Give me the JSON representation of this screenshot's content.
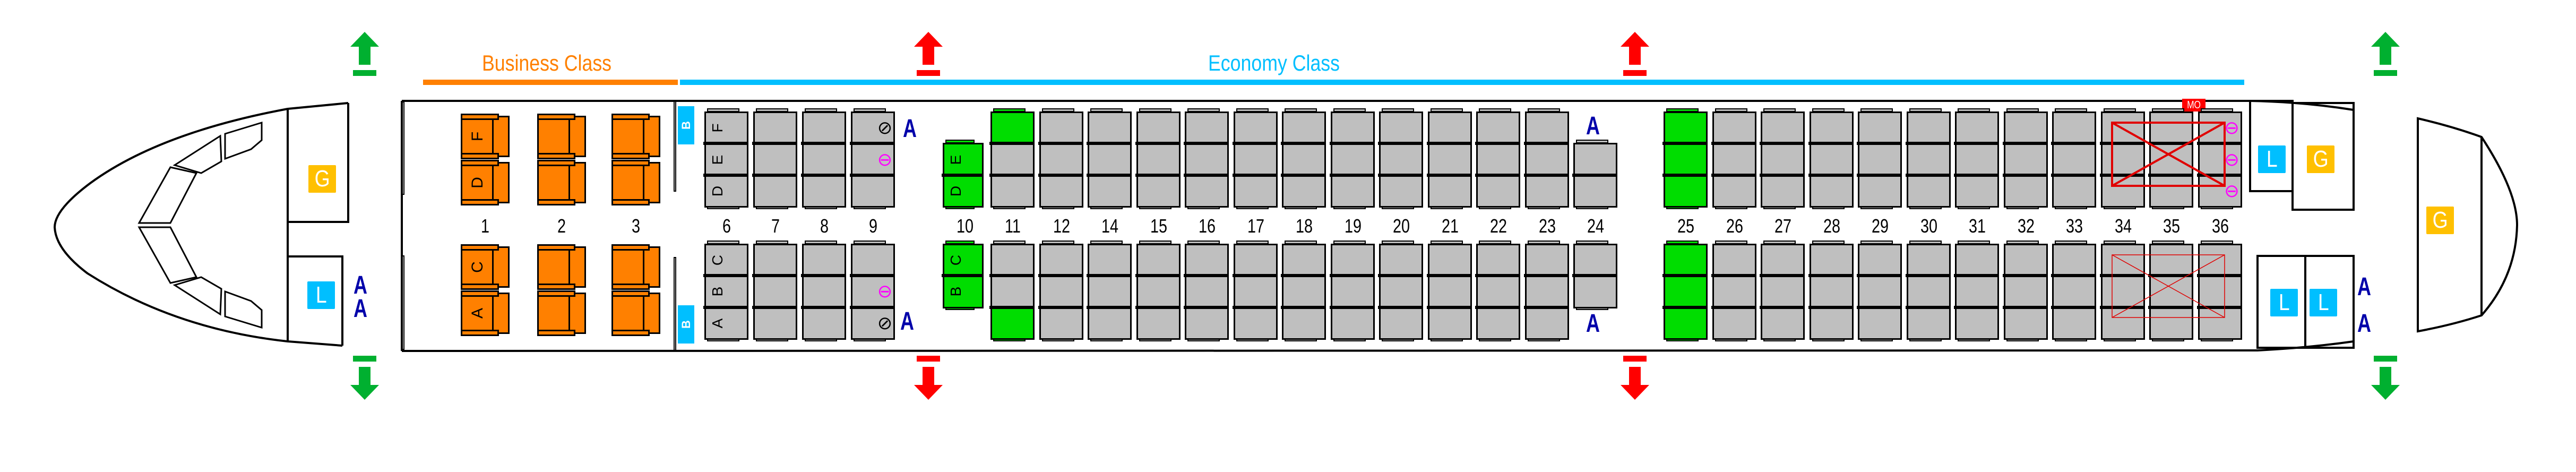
{
  "labels": {
    "business": "Business Class",
    "economy": "Economy Class"
  },
  "colors": {
    "business": "#FF8000",
    "economy_line": "#00BFFF",
    "seat_available": "#BFBFBF",
    "seat_green": "#00DD00",
    "galley": "#FFC000",
    "lavatory": "#00BFFF",
    "bassinet": "#00BFFF",
    "attendant": "#0000AA",
    "exit_main": "#00B030",
    "exit_overwing": "#FF0000",
    "blocked": "#E00000",
    "icon_magenta": "#FF00FF",
    "mo_badge": "#FF0000"
  },
  "facilities": {
    "galley": "G",
    "lavatory": "L",
    "bassinet": "B",
    "attendant": "A",
    "mo": "MO"
  },
  "business": {
    "rows": [
      "1",
      "2",
      "3"
    ],
    "upper_letters": [
      "F",
      "D"
    ],
    "lower_letters": [
      "C",
      "A"
    ]
  },
  "economy": {
    "upper_letters_3": [
      "F",
      "E",
      "D"
    ],
    "upper_letters_2": [
      "E",
      "D"
    ],
    "lower_letters_3": [
      "C",
      "B",
      "A"
    ],
    "lower_letters_2": [
      "C",
      "B"
    ],
    "blocked_rows": [
      "34",
      "35",
      "36"
    ],
    "rows": [
      {
        "n": "6",
        "upper": [
          "gray",
          "gray",
          "gray"
        ],
        "lower": [
          "gray",
          "gray",
          "gray"
        ],
        "show_letters": true
      },
      {
        "n": "7",
        "upper": [
          "gray",
          "gray",
          "gray"
        ],
        "lower": [
          "gray",
          "gray",
          "gray"
        ]
      },
      {
        "n": "8",
        "upper": [
          "gray",
          "gray",
          "gray"
        ],
        "lower": [
          "gray",
          "gray",
          "gray"
        ]
      },
      {
        "n": "9",
        "upper": [
          "gray",
          "gray",
          "gray"
        ],
        "lower": [
          "gray",
          "gray",
          "gray"
        ],
        "icons_upper": [
          "circle-slash",
          "circle-bar",
          ""
        ],
        "icons_lower": [
          "",
          "circle-bar",
          "circle-slash"
        ]
      },
      {
        "n": "10",
        "upper": [
          "green",
          "green"
        ],
        "lower": [
          "green",
          "green"
        ],
        "show_letters": true
      },
      {
        "n": "11",
        "upper": [
          "green",
          "gray",
          "gray"
        ],
        "lower": [
          "gray",
          "gray",
          "green"
        ]
      },
      {
        "n": "12",
        "upper": [
          "gray",
          "gray",
          "gray"
        ],
        "lower": [
          "gray",
          "gray",
          "gray"
        ]
      },
      {
        "n": "14",
        "upper": [
          "gray",
          "gray",
          "gray"
        ],
        "lower": [
          "gray",
          "gray",
          "gray"
        ]
      },
      {
        "n": "15",
        "upper": [
          "gray",
          "gray",
          "gray"
        ],
        "lower": [
          "gray",
          "gray",
          "gray"
        ]
      },
      {
        "n": "16",
        "upper": [
          "gray",
          "gray",
          "gray"
        ],
        "lower": [
          "gray",
          "gray",
          "gray"
        ]
      },
      {
        "n": "17",
        "upper": [
          "gray",
          "gray",
          "gray"
        ],
        "lower": [
          "gray",
          "gray",
          "gray"
        ]
      },
      {
        "n": "18",
        "upper": [
          "gray",
          "gray",
          "gray"
        ],
        "lower": [
          "gray",
          "gray",
          "gray"
        ]
      },
      {
        "n": "19",
        "upper": [
          "gray",
          "gray",
          "gray"
        ],
        "lower": [
          "gray",
          "gray",
          "gray"
        ]
      },
      {
        "n": "20",
        "upper": [
          "gray",
          "gray",
          "gray"
        ],
        "lower": [
          "gray",
          "gray",
          "gray"
        ]
      },
      {
        "n": "21",
        "upper": [
          "gray",
          "gray",
          "gray"
        ],
        "lower": [
          "gray",
          "gray",
          "gray"
        ]
      },
      {
        "n": "22",
        "upper": [
          "gray",
          "gray",
          "gray"
        ],
        "lower": [
          "gray",
          "gray",
          "gray"
        ]
      },
      {
        "n": "23",
        "upper": [
          "gray",
          "gray",
          "gray"
        ],
        "lower": [
          "gray",
          "gray",
          "gray"
        ]
      },
      {
        "n": "24",
        "upper": [
          "gray",
          "gray"
        ],
        "lower": [
          "gray",
          "gray"
        ]
      },
      {
        "n": "25",
        "upper": [
          "green",
          "green",
          "green"
        ],
        "lower": [
          "green",
          "green",
          "green"
        ]
      },
      {
        "n": "26",
        "upper": [
          "gray",
          "gray",
          "gray"
        ],
        "lower": [
          "gray",
          "gray",
          "gray"
        ]
      },
      {
        "n": "27",
        "upper": [
          "gray",
          "gray",
          "gray"
        ],
        "lower": [
          "gray",
          "gray",
          "gray"
        ]
      },
      {
        "n": "28",
        "upper": [
          "gray",
          "gray",
          "gray"
        ],
        "lower": [
          "gray",
          "gray",
          "gray"
        ]
      },
      {
        "n": "29",
        "upper": [
          "gray",
          "gray",
          "gray"
        ],
        "lower": [
          "gray",
          "gray",
          "gray"
        ]
      },
      {
        "n": "30",
        "upper": [
          "gray",
          "gray",
          "gray"
        ],
        "lower": [
          "gray",
          "gray",
          "gray"
        ]
      },
      {
        "n": "31",
        "upper": [
          "gray",
          "gray",
          "gray"
        ],
        "lower": [
          "gray",
          "gray",
          "gray"
        ]
      },
      {
        "n": "32",
        "upper": [
          "gray",
          "gray",
          "gray"
        ],
        "lower": [
          "gray",
          "gray",
          "gray"
        ]
      },
      {
        "n": "33",
        "upper": [
          "gray",
          "gray",
          "gray"
        ],
        "lower": [
          "gray",
          "gray",
          "gray"
        ]
      },
      {
        "n": "34",
        "upper": [
          "gray",
          "gray",
          "gray"
        ],
        "lower": [
          "gray",
          "gray",
          "gray"
        ]
      },
      {
        "n": "35",
        "upper": [
          "gray",
          "gray",
          "gray"
        ],
        "lower": [
          "gray",
          "gray",
          "gray"
        ]
      },
      {
        "n": "36",
        "upper": [
          "gray",
          "gray",
          "gray"
        ],
        "lower": [
          "gray",
          "gray",
          "gray"
        ],
        "icons_upper": [
          "circle-bar",
          "circle-bar",
          "circle-bar"
        ]
      }
    ]
  }
}
